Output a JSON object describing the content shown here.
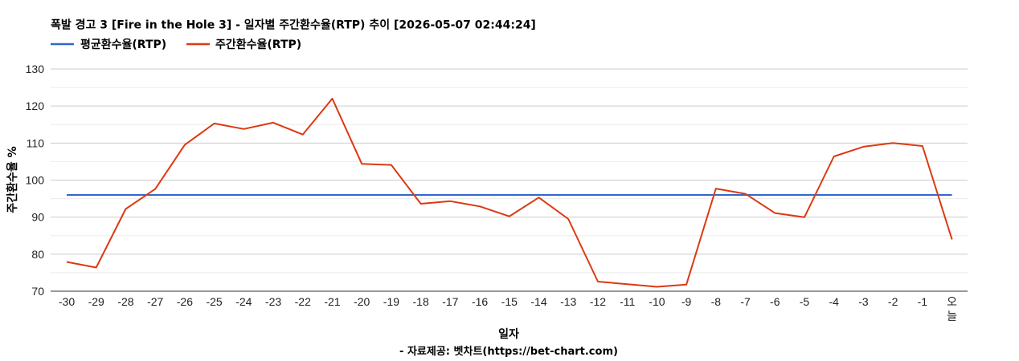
{
  "chart_data": {
    "type": "line",
    "title": "폭발 경고 3 [Fire in the Hole 3] - 일자별 주간환수율(RTP) 추이 [2026-05-07 02:44:24]",
    "xlabel": "일자",
    "ylabel": "주간환수율 %",
    "source": "- 자료제공: 벳차트(https://bet-chart.com)",
    "ylim": [
      70,
      130
    ],
    "yticks": [
      "70",
      "80",
      "90",
      "100",
      "110",
      "120",
      "130"
    ],
    "grid": true,
    "legend_position": "top-left",
    "categories": [
      "-30",
      "-29",
      "-28",
      "-27",
      "-26",
      "-25",
      "-24",
      "-23",
      "-22",
      "-21",
      "-20",
      "-19",
      "-18",
      "-17",
      "-16",
      "-15",
      "-14",
      "-13",
      "-12",
      "-11",
      "-10",
      "-9",
      "-8",
      "-7",
      "-6",
      "-5",
      "-4",
      "-3",
      "-2",
      "-1",
      "오늘"
    ],
    "series": [
      {
        "name": "평균환수율(RTP)",
        "color": "#3366cc",
        "values": [
          96,
          96,
          96,
          96,
          96,
          96,
          96,
          96,
          96,
          96,
          96,
          96,
          96,
          96,
          96,
          96,
          96,
          96,
          96,
          96,
          96,
          96,
          96,
          96,
          96,
          96,
          96,
          96,
          96,
          96,
          96
        ]
      },
      {
        "name": "주간환수율(RTP)",
        "color": "#dc3912",
        "values": [
          77.9,
          76.4,
          92.2,
          97.6,
          109.5,
          115.3,
          113.8,
          115.5,
          112.3,
          122,
          104.4,
          104.1,
          93.6,
          94.3,
          92.9,
          90.2,
          95.3,
          89.5,
          72.6,
          71.9,
          71.2,
          71.8,
          97.7,
          96.3,
          91.1,
          90,
          106.4,
          109,
          110,
          109.2,
          84
        ]
      }
    ]
  }
}
